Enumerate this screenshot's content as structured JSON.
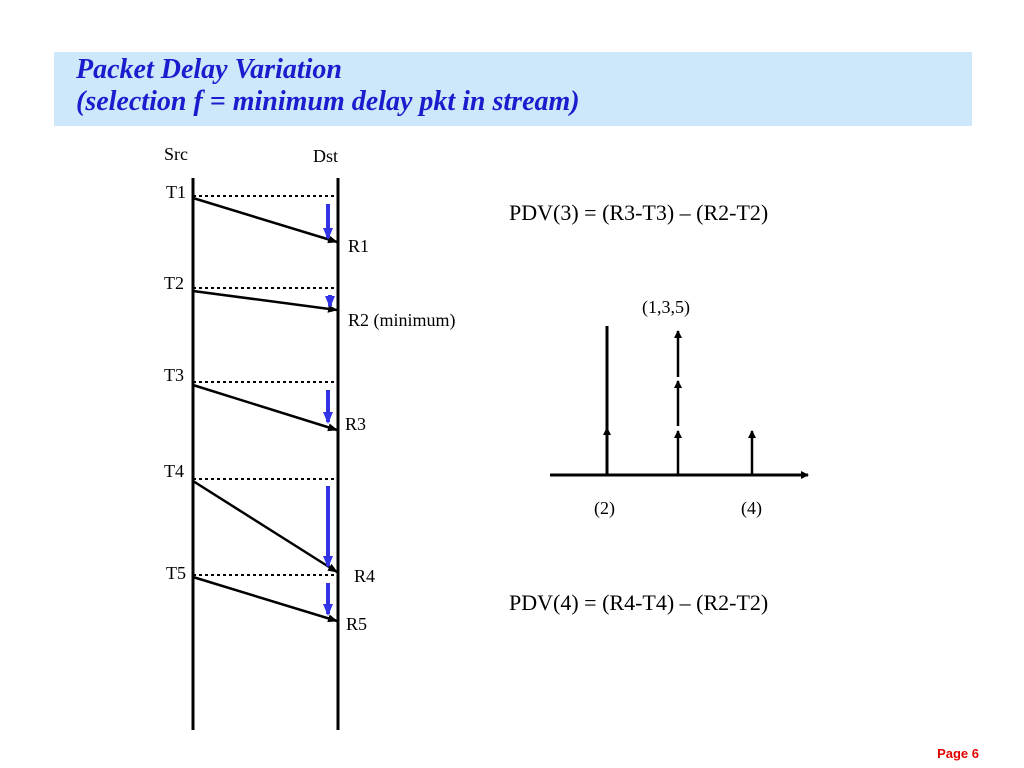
{
  "title": {
    "line1": "Packet Delay Variation",
    "line2": "(selection f = minimum delay pkt in stream)"
  },
  "timeline": {
    "src_label": "Src",
    "dst_label": "Dst",
    "send_labels": [
      "T1",
      "T2",
      "T3",
      "T4",
      "T5"
    ],
    "receive_labels": [
      "R1",
      "R2 (minimum)",
      "R3",
      "R4",
      "R5"
    ]
  },
  "formulas": {
    "pdv3": "PDV(3) = (R3-T3) – (R2-T2)",
    "pdv4": "PDV(4) = (R4-T4) – (R2-T2)"
  },
  "histogram": {
    "top_label": "(1,3,5)",
    "x_labels": [
      "(2)",
      "(4)"
    ]
  },
  "colors": {
    "title_text": "#1c1cce",
    "title_background": "#cce8fa",
    "delay_arrow": "#3333e6",
    "page_number": "#e00000"
  },
  "footer": {
    "page_label": "Page 6"
  }
}
